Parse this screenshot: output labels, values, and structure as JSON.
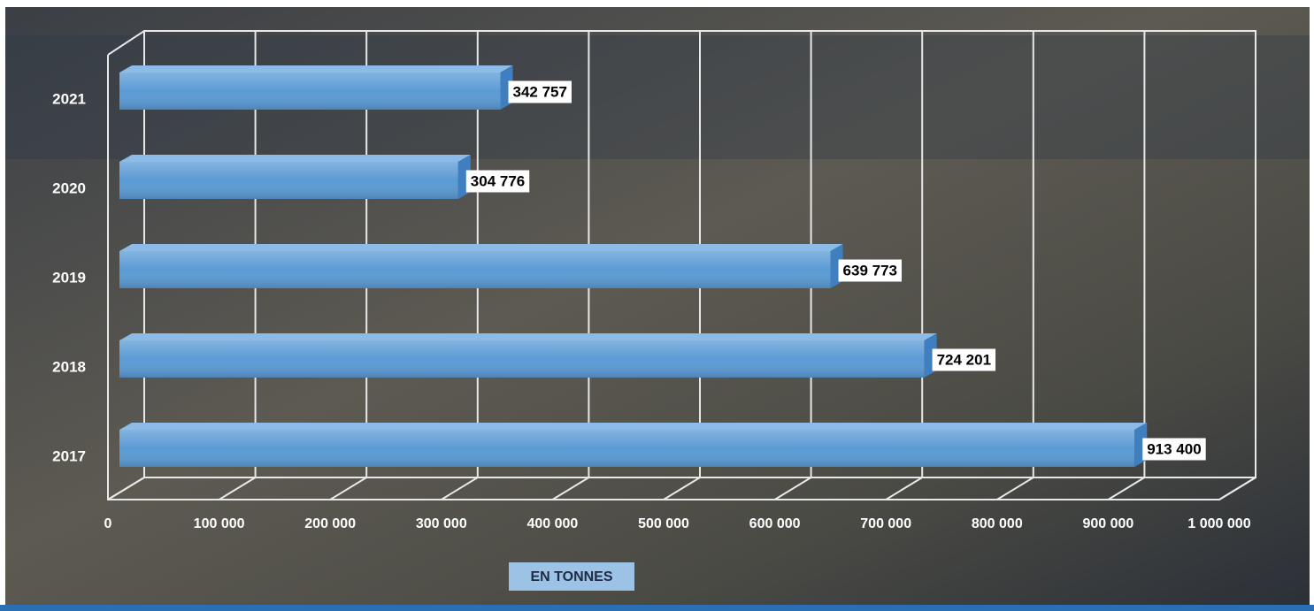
{
  "chart_data": {
    "type": "bar",
    "orientation": "horizontal",
    "categories": [
      "2021",
      "2020",
      "2019",
      "2018",
      "2017"
    ],
    "values": [
      342757,
      304776,
      639773,
      724201,
      913400
    ],
    "value_labels": [
      "342 757",
      "304 776",
      "639 773",
      "724 201",
      "913 400"
    ],
    "color": "#5b9bd5",
    "x_label": "EN TONNES",
    "xlim": [
      0,
      1000000
    ],
    "xticks": [
      0,
      {
        "value": 100000,
        "label": "100 000"
      },
      {
        "value": 200000,
        "label": "200 000"
      },
      {
        "value": 300000,
        "label": "300 000"
      },
      {
        "value": 400000,
        "label": "400 000"
      },
      {
        "value": 500000,
        "label": "500 000"
      },
      {
        "value": 600000,
        "label": "600 000"
      },
      {
        "value": 700000,
        "label": "700 000"
      },
      {
        "value": 800000,
        "label": "800 000"
      },
      {
        "value": 900000,
        "label": "900 000"
      },
      {
        "value": 1000000,
        "label": "1 000 000"
      }
    ],
    "grid": true
  }
}
